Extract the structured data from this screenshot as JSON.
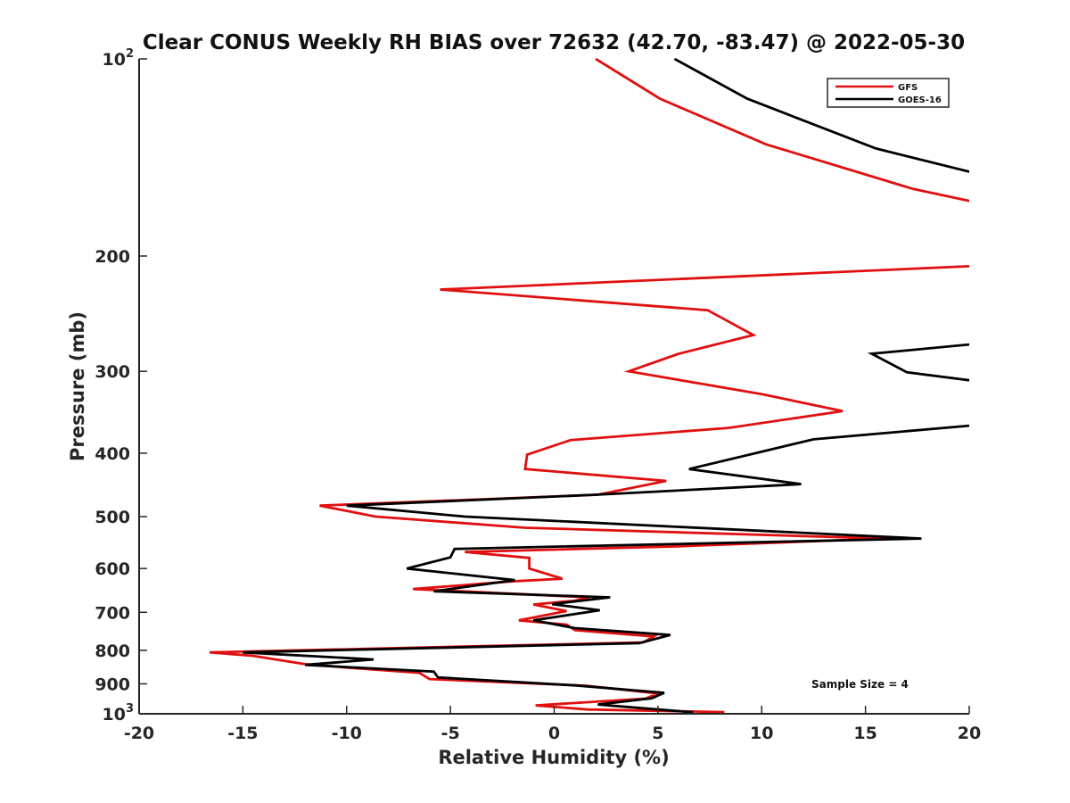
{
  "chart_data": {
    "type": "line",
    "title": "Clear CONUS Weekly RH BIAS over 72632 (42.70, -83.47) @ 2022-05-30",
    "xlabel": "Relative Humidity (%)",
    "ylabel": "Pressure (mb)",
    "xlim": [
      -20,
      20
    ],
    "ylim": [
      100,
      1000
    ],
    "y_scale": "log",
    "y_reversed": true,
    "grid": false,
    "legend_position": "top-right",
    "x_ticks": [
      -20,
      -15,
      -10,
      -5,
      0,
      5,
      10,
      15,
      20
    ],
    "x_tick_labels": [
      "-20",
      "-15",
      "-10",
      "-5",
      "0",
      "5",
      "10",
      "15",
      "20"
    ],
    "y_ticks": [
      {
        "value": 100,
        "base": "10",
        "exp": "2"
      },
      {
        "value": 200,
        "base": "200",
        "exp": ""
      },
      {
        "value": 300,
        "base": "300",
        "exp": ""
      },
      {
        "value": 400,
        "base": "400",
        "exp": ""
      },
      {
        "value": 500,
        "base": "500",
        "exp": ""
      },
      {
        "value": 600,
        "base": "600",
        "exp": ""
      },
      {
        "value": 700,
        "base": "700",
        "exp": ""
      },
      {
        "value": 800,
        "base": "800",
        "exp": ""
      },
      {
        "value": 900,
        "base": "900",
        "exp": ""
      },
      {
        "value": 1000,
        "base": "10",
        "exp": "3"
      }
    ],
    "annotation": "Sample Size = 4",
    "series": [
      {
        "name": "GFS",
        "color": "#e01010",
        "points": [
          {
            "x": 2.0,
            "y": 100
          },
          {
            "x": 5.1,
            "y": 115
          },
          {
            "x": 10.2,
            "y": 135
          },
          {
            "x": 17.3,
            "y": 158
          },
          {
            "x": 20.5,
            "y": 166
          },
          {
            "x": 20.5,
            "y": 207
          },
          {
            "x": -5.5,
            "y": 225
          },
          {
            "x": 7.4,
            "y": 242
          },
          {
            "x": 9.6,
            "y": 264
          },
          {
            "x": 6.0,
            "y": 282
          },
          {
            "x": 3.6,
            "y": 300
          },
          {
            "x": 10.0,
            "y": 325
          },
          {
            "x": 13.9,
            "y": 345
          },
          {
            "x": 8.4,
            "y": 366
          },
          {
            "x": 0.8,
            "y": 382
          },
          {
            "x": -1.3,
            "y": 402
          },
          {
            "x": -1.4,
            "y": 423
          },
          {
            "x": 5.4,
            "y": 441
          },
          {
            "x": 2.1,
            "y": 463
          },
          {
            "x": -11.3,
            "y": 481
          },
          {
            "x": -8.6,
            "y": 500
          },
          {
            "x": -1.4,
            "y": 520
          },
          {
            "x": 16.0,
            "y": 540
          },
          {
            "x": 6.0,
            "y": 555
          },
          {
            "x": -4.3,
            "y": 566
          },
          {
            "x": -1.2,
            "y": 578
          },
          {
            "x": -1.2,
            "y": 600
          },
          {
            "x": 0.4,
            "y": 622
          },
          {
            "x": -2.1,
            "y": 628
          },
          {
            "x": -6.8,
            "y": 645
          },
          {
            "x": 1.7,
            "y": 664
          },
          {
            "x": 1.0,
            "y": 672
          },
          {
            "x": -1.0,
            "y": 681
          },
          {
            "x": 0.6,
            "y": 697
          },
          {
            "x": -1.7,
            "y": 720
          },
          {
            "x": 0.6,
            "y": 731
          },
          {
            "x": 1.0,
            "y": 745
          },
          {
            "x": 4.8,
            "y": 762
          },
          {
            "x": 4.3,
            "y": 778
          },
          {
            "x": -16.6,
            "y": 806
          },
          {
            "x": -14.6,
            "y": 815
          },
          {
            "x": -12.0,
            "y": 840
          },
          {
            "x": -10.0,
            "y": 850
          },
          {
            "x": -6.5,
            "y": 866
          },
          {
            "x": -6.0,
            "y": 885
          },
          {
            "x": 1.5,
            "y": 906
          },
          {
            "x": 5.0,
            "y": 931
          },
          {
            "x": 4.4,
            "y": 948
          },
          {
            "x": -0.9,
            "y": 971
          },
          {
            "x": 1.6,
            "y": 985
          },
          {
            "x": 8.2,
            "y": 994
          }
        ]
      },
      {
        "name": "GOES-16",
        "color": "#000000",
        "points": [
          {
            "x": 5.8,
            "y": 100
          },
          {
            "x": 9.3,
            "y": 115
          },
          {
            "x": 15.5,
            "y": 137
          },
          {
            "x": 20.5,
            "y": 150
          },
          {
            "x": null,
            "y": null
          },
          {
            "x": 20.5,
            "y": 272
          },
          {
            "x": 15.3,
            "y": 282
          },
          {
            "x": 17.0,
            "y": 301
          },
          {
            "x": 20.5,
            "y": 311
          },
          {
            "x": null,
            "y": null
          },
          {
            "x": 20.5,
            "y": 362
          },
          {
            "x": 12.5,
            "y": 381
          },
          {
            "x": 6.5,
            "y": 423
          },
          {
            "x": 11.9,
            "y": 446
          },
          {
            "x": 2.0,
            "y": 463
          },
          {
            "x": -10.0,
            "y": 481
          },
          {
            "x": -4.3,
            "y": 500
          },
          {
            "x": 17.7,
            "y": 540
          },
          {
            "x": -4.8,
            "y": 560
          },
          {
            "x": -5.0,
            "y": 577
          },
          {
            "x": -7.1,
            "y": 600
          },
          {
            "x": -1.9,
            "y": 625
          },
          {
            "x": -5.8,
            "y": 650
          },
          {
            "x": 2.7,
            "y": 664
          },
          {
            "x": -0.1,
            "y": 680
          },
          {
            "x": 2.2,
            "y": 695
          },
          {
            "x": -1.0,
            "y": 720
          },
          {
            "x": 1.0,
            "y": 740
          },
          {
            "x": 5.6,
            "y": 758
          },
          {
            "x": 4.1,
            "y": 780
          },
          {
            "x": -15.0,
            "y": 806
          },
          {
            "x": -8.7,
            "y": 826
          },
          {
            "x": -12.0,
            "y": 842
          },
          {
            "x": -5.8,
            "y": 862
          },
          {
            "x": -5.6,
            "y": 880
          },
          {
            "x": 1.0,
            "y": 905
          },
          {
            "x": 5.3,
            "y": 929
          },
          {
            "x": 4.7,
            "y": 947
          },
          {
            "x": 2.1,
            "y": 968
          },
          {
            "x": 6.7,
            "y": 995
          }
        ]
      }
    ]
  }
}
